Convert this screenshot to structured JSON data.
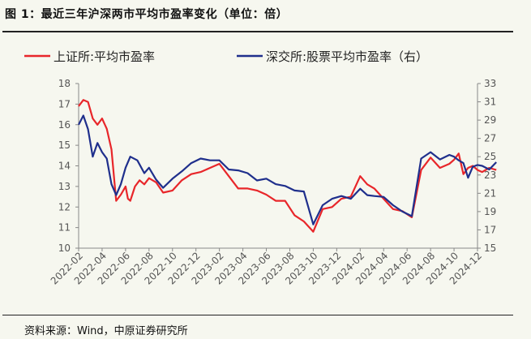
{
  "title": "图 1：最近三年沪深两市平均市盈率变化（单位：倍）",
  "source": "资料来源：Wind，中原证券研究所",
  "chart_data": {
    "type": "line",
    "title": "最近三年沪深两市平均市盈率变化（单位：倍）",
    "x": [
      "2022-02",
      "2022-04",
      "2022-06",
      "2022-08",
      "2022-10",
      "2022-12",
      "2023-02",
      "2023-04",
      "2023-06",
      "2023-08",
      "2023-10",
      "2023-12",
      "2024-02",
      "2024-04",
      "2024-06",
      "2024-08",
      "2024-10",
      "2024-12"
    ],
    "ylim_left": [
      10,
      18
    ],
    "yticks_left": [
      10,
      11,
      12,
      13,
      14,
      15,
      16,
      17,
      18
    ],
    "ylim_right": [
      15,
      33
    ],
    "yticks_right": [
      15,
      17,
      19,
      21,
      23,
      25,
      27,
      29,
      31,
      33
    ],
    "colors": {
      "sh": "#e8262a",
      "sz": "#1f2f8c"
    },
    "series": [
      {
        "name": "上证所:平均市盈率",
        "axis": "left",
        "color": "#e8262a",
        "x": [
          0,
          0.2,
          0.4,
          0.6,
          0.8,
          1.0,
          1.2,
          1.4,
          1.6,
          1.8,
          2.0,
          2.1,
          2.2,
          2.4,
          2.6,
          2.8,
          3.0,
          3.3,
          3.6,
          4.0,
          4.4,
          4.8,
          5.2,
          5.6,
          6.0,
          6.4,
          6.8,
          7.2,
          7.6,
          8.0,
          8.4,
          8.8,
          9.2,
          9.6,
          10.0,
          10.4,
          10.8,
          11.2,
          11.6,
          12.0,
          12.3,
          12.6,
          13.0,
          13.4,
          13.8,
          14.2,
          14.6,
          15.0,
          15.4,
          15.8,
          16.0,
          16.2,
          16.4,
          16.6,
          16.8,
          17.0,
          17.2,
          17.5,
          17.8
        ],
        "values": [
          16.9,
          17.2,
          17.1,
          16.3,
          16.0,
          16.3,
          15.8,
          14.8,
          12.3,
          12.6,
          13.0,
          12.4,
          12.3,
          13.0,
          13.3,
          13.1,
          13.4,
          13.2,
          12.7,
          12.8,
          13.3,
          13.6,
          13.7,
          13.9,
          14.1,
          13.5,
          12.9,
          12.9,
          12.8,
          12.6,
          12.3,
          12.3,
          11.6,
          11.3,
          10.8,
          11.9,
          12.0,
          12.4,
          12.5,
          13.5,
          13.1,
          12.9,
          12.4,
          11.9,
          11.8,
          11.5,
          13.8,
          14.4,
          13.9,
          14.1,
          14.3,
          14.6,
          13.6,
          13.9,
          14.0,
          13.8,
          13.7,
          13.9,
          13.8
        ]
      },
      {
        "name": "深交所:股票平均市盈率（右）",
        "axis": "right",
        "color": "#1f2f8c",
        "x": [
          0,
          0.2,
          0.4,
          0.6,
          0.8,
          1.0,
          1.2,
          1.4,
          1.6,
          1.8,
          2.0,
          2.2,
          2.5,
          2.8,
          3.0,
          3.3,
          3.6,
          4.0,
          4.4,
          4.8,
          5.2,
          5.6,
          6.0,
          6.4,
          6.8,
          7.2,
          7.6,
          8.0,
          8.4,
          8.8,
          9.2,
          9.6,
          10.0,
          10.4,
          10.8,
          11.2,
          11.6,
          12.0,
          12.3,
          12.6,
          13.0,
          13.4,
          13.8,
          14.2,
          14.6,
          15.0,
          15.4,
          15.8,
          16.0,
          16.2,
          16.4,
          16.6,
          16.8,
          17.0,
          17.2,
          17.5,
          17.8
        ],
        "values": [
          28.5,
          29.5,
          28.0,
          25.0,
          26.5,
          25.5,
          24.8,
          22.0,
          20.8,
          22.0,
          23.8,
          25.0,
          24.6,
          23.2,
          23.8,
          22.5,
          21.6,
          22.6,
          23.4,
          24.3,
          24.8,
          24.6,
          24.6,
          23.6,
          23.5,
          23.2,
          22.4,
          22.6,
          22.0,
          21.8,
          21.3,
          21.2,
          17.6,
          19.7,
          20.4,
          20.7,
          20.4,
          21.5,
          20.8,
          20.7,
          20.6,
          19.7,
          19.0,
          18.5,
          24.8,
          25.5,
          24.7,
          25.2,
          25.0,
          24.6,
          24.3,
          22.7,
          23.9,
          24.1,
          24.0,
          23.6,
          24.4
        ]
      }
    ],
    "legend": "top"
  }
}
